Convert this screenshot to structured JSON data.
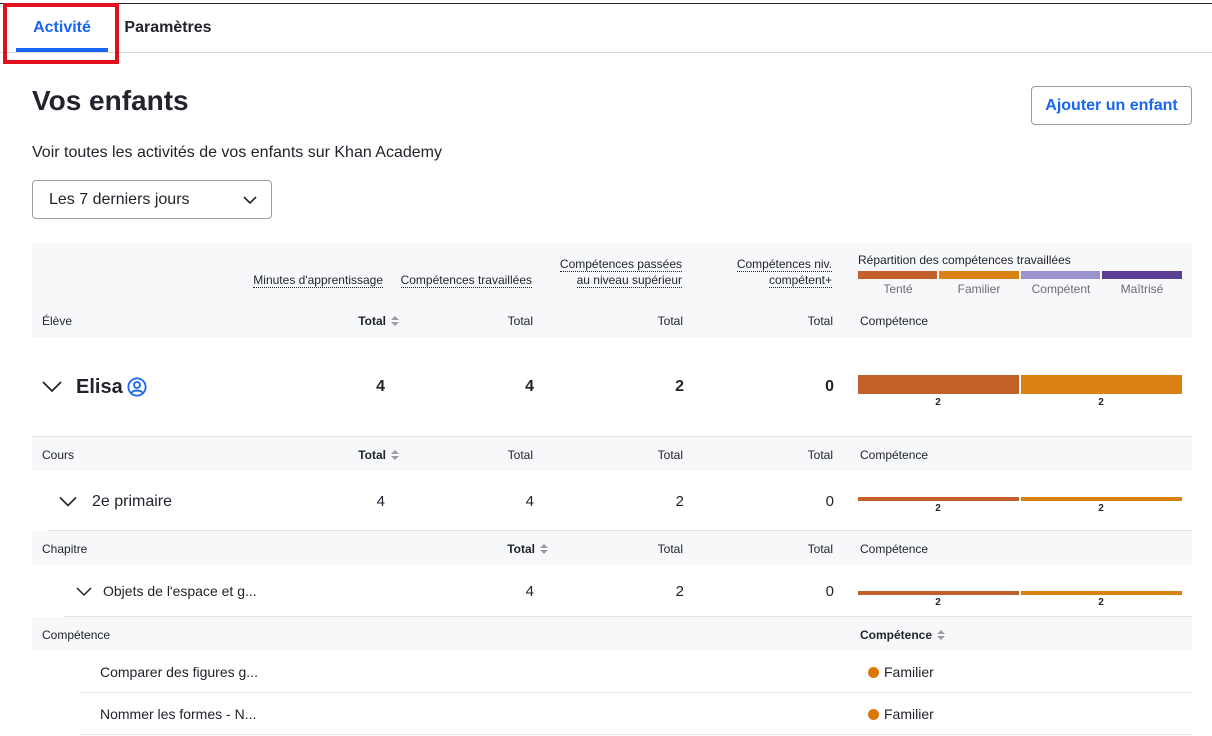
{
  "tabs": {
    "activity": "Activité",
    "settings": "Paramètres"
  },
  "header": {
    "title": "Vos enfants",
    "add_child": "Ajouter un enfant",
    "subtitle": "Voir toutes les activités de vos enfants sur Khan Academy",
    "period": "Les 7 derniers jours"
  },
  "columns": {
    "minutes": "Minutes d'apprentissage",
    "worked": "Compétences travaillées",
    "passed_1": "Compétences passées",
    "passed_2": "au niveau supérieur",
    "proficient_1": "Compétences niv.",
    "proficient_2": "compétent+",
    "distribution": "Répartition des compétences travaillées",
    "total": "Total",
    "competence": "Compétence"
  },
  "legend": {
    "attempted": "Tenté",
    "familiar": "Familier",
    "proficient": "Compétent",
    "mastered": "Maîtrisé"
  },
  "colors": {
    "attempted": "#c35f28",
    "familiar": "#d98213",
    "proficient": "#9b93cc",
    "mastered": "#5b3e96",
    "accent": "#1865f2"
  },
  "levels": {
    "student": "Élève",
    "course": "Cours",
    "chapter": "Chapitre",
    "skill": "Compétence"
  },
  "student": {
    "name": "Elisa",
    "minutes": "4",
    "worked": "4",
    "passed": "2",
    "proficient": "0",
    "attempted_count": "2",
    "familiar_count": "2",
    "attempted_value": 2,
    "familiar_value": 2
  },
  "course": {
    "name": "2e primaire",
    "minutes": "4",
    "worked": "4",
    "passed": "2",
    "proficient": "0",
    "attempted_count": "2",
    "familiar_count": "2"
  },
  "chapter": {
    "name": "Objets de l'espace et g...",
    "worked": "4",
    "passed": "2",
    "proficient": "0",
    "attempted_count": "2",
    "familiar_count": "2"
  },
  "skills": [
    {
      "name": "Comparer des figures g...",
      "status": "Familier"
    },
    {
      "name": "Nommer les formes - N...",
      "status": "Familier"
    }
  ]
}
